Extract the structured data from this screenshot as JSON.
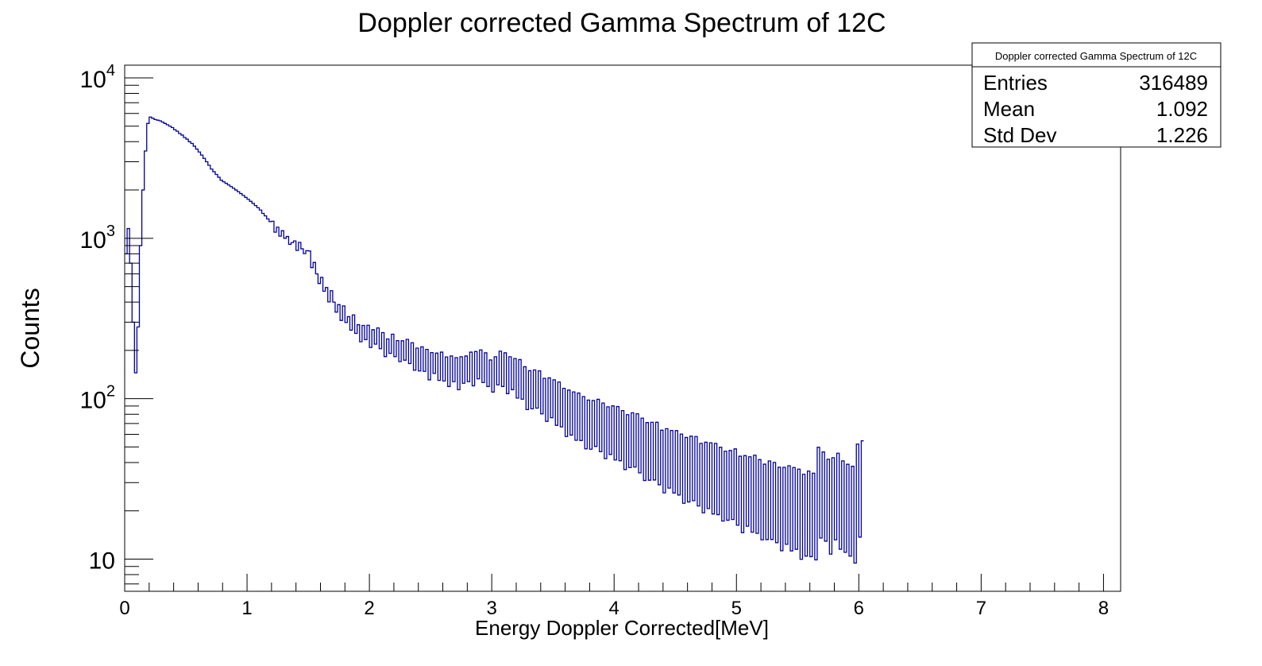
{
  "colors": {
    "line": "#000099",
    "frame": "#000000",
    "background": "#ffffff"
  },
  "chart_data": {
    "type": "histogram",
    "title": "Doppler corrected Gamma Spectrum of 12C",
    "xlabel": "Energy Doppler Corrected[MeV]",
    "ylabel": "Counts",
    "xlim": [
      0,
      8.14
    ],
    "ylim": [
      6.3,
      12000
    ],
    "yscale": "log",
    "x_ticks": [
      "0",
      "1",
      "2",
      "3",
      "4",
      "5",
      "6",
      "7",
      "8"
    ],
    "y_ticks": [
      {
        "base": "10",
        "exp": "",
        "value": 10
      },
      {
        "base": "10",
        "exp": "2",
        "value": 100
      },
      {
        "base": "10",
        "exp": "3",
        "value": 1000
      },
      {
        "base": "10",
        "exp": "4",
        "value": 10000
      }
    ],
    "grid": false,
    "stats_box": {
      "title": "Doppler corrected Gamma Spectrum of 12C",
      "rows": [
        {
          "label": "Entries",
          "value": "316489"
        },
        {
          "label": "Mean",
          "value": "1.092"
        },
        {
          "label": "Std Dev",
          "value": "1.226"
        }
      ]
    },
    "bin_width": 0.02,
    "bin_centers_start": 0.01,
    "series": [
      {
        "values": [
          800,
          1150,
          700,
          300,
          145,
          280,
          900,
          2000,
          3500,
          5200,
          5700,
          5600,
          5500,
          5450,
          5400,
          5300,
          5200,
          5100,
          5000,
          4900,
          4750,
          4650,
          4500,
          4400,
          4250,
          4150,
          4000,
          3900,
          3750,
          3600,
          3450,
          3300,
          3150,
          3000,
          2850,
          2700,
          2600,
          2500,
          2400,
          2300,
          2250,
          2200,
          2150,
          2100,
          2050,
          2000,
          1950,
          1900,
          1850,
          1800,
          1750,
          1700,
          1650,
          1600,
          1550,
          1500,
          1430,
          1380,
          1320,
          1270,
          1220,
          1170,
          1120,
          1080,
          1040,
          1000,
          980,
          960,
          940,
          920,
          900,
          880,
          860,
          840,
          800,
          760,
          720,
          660,
          600,
          560,
          520,
          490,
          460,
          440,
          420,
          400,
          380,
          360,
          345,
          330,
          320,
          310,
          300,
          290,
          280,
          270,
          260,
          255,
          250,
          250,
          245,
          240,
          240,
          235,
          230,
          225,
          220,
          215,
          215,
          210,
          210,
          205,
          200,
          200,
          195,
          195,
          190,
          190,
          185,
          180,
          175,
          175,
          170,
          165,
          165,
          165,
          165,
          160,
          160,
          155,
          155,
          155,
          150,
          150,
          150,
          150,
          150,
          145,
          150,
          150,
          150,
          155,
          155,
          160,
          160,
          160,
          155,
          150,
          150,
          145,
          145,
          145,
          150,
          150,
          150,
          150,
          145,
          145,
          140,
          135,
          130,
          130,
          125,
          120,
          118,
          116,
          114,
          112,
          110,
          108,
          106,
          104,
          102,
          100,
          98,
          95,
          92,
          90,
          88,
          86,
          84,
          82,
          80,
          78,
          76,
          75,
          74,
          73,
          72,
          71,
          70,
          69,
          68,
          67,
          66,
          65,
          64,
          63,
          62,
          61,
          60,
          59,
          58,
          57,
          56,
          55,
          55,
          54,
          53,
          52,
          51,
          50,
          49,
          48,
          47,
          46,
          45,
          45,
          44,
          43,
          42,
          42,
          41,
          40,
          40,
          39,
          38,
          38,
          37,
          37,
          36,
          36,
          35,
          35,
          34,
          34,
          33,
          33,
          32,
          32,
          31,
          31,
          30,
          30,
          30,
          29,
          29,
          28,
          28,
          28,
          27,
          27,
          26,
          26,
          26,
          25,
          25,
          25,
          24,
          24,
          24,
          23,
          23,
          23,
          22,
          22,
          22,
          22,
          21,
          21,
          21,
          21,
          20,
          20,
          20,
          20,
          19,
          19,
          19,
          19,
          18,
          18,
          18,
          28,
          27,
          25,
          23,
          22,
          20,
          22,
          24,
          24,
          23,
          22,
          21,
          20,
          19,
          19,
          18,
          28,
          28,
          28
        ],
        "noise": [
          0,
          0,
          0,
          0,
          0,
          0,
          0,
          0,
          0,
          0,
          0,
          0,
          0,
          0,
          0,
          0,
          0,
          0,
          0,
          0,
          0,
          0,
          0,
          0,
          0,
          0,
          0,
          0,
          0,
          0,
          0,
          0,
          0,
          0,
          0,
          0,
          0,
          0,
          0,
          0,
          0,
          0,
          0,
          0,
          0,
          0,
          0,
          0,
          0,
          0,
          0,
          0,
          0,
          0,
          0,
          0,
          0,
          0,
          0,
          0,
          0.02,
          -0.03,
          0.02,
          -0.02,
          0.03,
          0,
          0.02,
          -0.02,
          0,
          0.02,
          -0.03,
          0.03,
          0,
          -0.02,
          0.02,
          0.04,
          -0.04,
          0.03,
          0,
          -0.03,
          0.04,
          -0.02,
          0.03,
          -0.04,
          0.05,
          0,
          -0.04,
          0.03,
          -0.05,
          0.06,
          -0.03,
          0.02,
          -0.05,
          0.06,
          -0.04,
          0.03,
          -0.06,
          0.05,
          -0.03,
          0.06,
          -0.07,
          0.05,
          -0.04,
          0.07,
          -0.05,
          0.06,
          -0.08,
          0.04,
          -0.05,
          0.08,
          -0.06,
          0.05,
          -0.07,
          0.06,
          -0.05,
          0.08,
          -0.06,
          0.07,
          -0.09,
          0.06,
          -0.07,
          0.08,
          -0.06,
          0.09,
          -0.1,
          0.07,
          -0.06,
          0.08,
          -0.09,
          0.1,
          -0.08,
          0.07,
          -0.1,
          0.09,
          -0.07,
          0.08,
          -0.12,
          0.1,
          -0.08,
          0.09,
          -0.07,
          0.1,
          -0.11,
          0.09,
          -0.08,
          0.1,
          -0.09,
          0.11,
          -0.1,
          0.08,
          -0.12,
          0.1,
          -0.09,
          0.12,
          -0.1,
          0.11,
          -0.13,
          0.1,
          -0.09,
          0.12,
          -0.11,
          0.13,
          -0.1,
          0.12,
          -0.14,
          0.11,
          -0.12,
          0.13,
          -0.1,
          0.14,
          -0.12,
          0.11,
          -0.15,
          0.13,
          -0.11,
          0.14,
          -0.13,
          0.15,
          -0.12,
          0.13,
          -0.16,
          0.14,
          -0.13,
          0.15,
          -0.14,
          0.16,
          -0.13,
          0.15,
          -0.17,
          0.14,
          -0.16,
          0.15,
          -0.13,
          0.17,
          -0.15,
          0.16,
          -0.18,
          0.15,
          -0.14,
          0.17,
          -0.16,
          0.18,
          -0.15,
          0.17,
          -0.19,
          0.16,
          -0.17,
          0.18,
          -0.15,
          0.19,
          -0.17,
          0.18,
          -0.2,
          0.17,
          -0.18,
          0.19,
          -0.16,
          0.2,
          -0.18,
          0.17,
          -0.21,
          0.19,
          -0.17,
          0.2,
          -0.19,
          0.21,
          -0.18,
          0.2,
          -0.22,
          0.19,
          -0.2,
          0.21,
          -0.18,
          0.22,
          -0.2,
          0.19,
          -0.23,
          0.21,
          -0.19,
          0.22,
          -0.21,
          0.23,
          -0.2,
          0.22,
          -0.24,
          0.21,
          -0.22,
          0.23,
          -0.2,
          0.24,
          -0.22,
          0.21,
          -0.25,
          0.23,
          -0.21,
          0.24,
          -0.23,
          0.25,
          -0.22,
          0.24,
          -0.26,
          0.23,
          -0.24,
          0.25,
          -0.22,
          0.26,
          -0.24,
          0.23,
          -0.27,
          0.25,
          -0.23,
          0.26,
          -0.25,
          0.27,
          -0.24,
          0.26,
          -0.28,
          0.25,
          -0.26,
          0.27,
          -0.24,
          0.28,
          -0.26,
          0.25,
          -0.3,
          0.27,
          -0.25,
          0.28,
          -0.27,
          0.29,
          -0.26,
          0.28,
          -0.3,
          0.27,
          -0.28,
          0.29,
          -0.26,
          0.3,
          -0.28,
          0.27,
          -0.31,
          0.29,
          -0.27,
          0.3,
          -0.29,
          0.31,
          -0.28,
          0.3,
          -0.32,
          0,
          0,
          0,
          0,
          0,
          0,
          0,
          0,
          0,
          0,
          0,
          0,
          0,
          0,
          0,
          0,
          0,
          0,
          0
        ]
      }
    ]
  }
}
